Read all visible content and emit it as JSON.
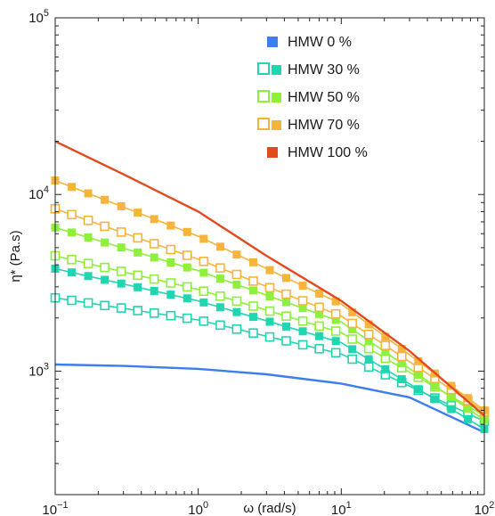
{
  "chart_data": {
    "type": "line",
    "xlabel": "ω (rad/s)",
    "ylabel": "η* (Pa.s)",
    "xscale": "log",
    "yscale": "log",
    "xlim": [
      0.1,
      100
    ],
    "ylim": [
      200,
      100000
    ],
    "grid": false,
    "legend_position": "top-right",
    "x_ticks": [
      {
        "base": "10",
        "exp": "−1",
        "value": 0.1
      },
      {
        "base": "10",
        "exp": "0",
        "value": 1
      },
      {
        "base": "10",
        "exp": "1",
        "value": 10
      },
      {
        "base": "10",
        "exp": "2",
        "value": 100
      }
    ],
    "y_ticks": [
      {
        "base": "10",
        "exp": "3",
        "value": 1000
      },
      {
        "base": "10",
        "exp": "4",
        "value": 10000
      },
      {
        "base": "10",
        "exp": "5",
        "value": 100000
      }
    ],
    "legend": [
      {
        "label": "HMW 0 %",
        "color": "#3d7df0",
        "style": "line"
      },
      {
        "label": "HMW 30 %",
        "color": "#20d6b0",
        "style": "markers"
      },
      {
        "label": "HMW 50 %",
        "color": "#8ef03a",
        "style": "markers"
      },
      {
        "label": "HMW 70 %",
        "color": "#f5b43c",
        "style": "markers"
      },
      {
        "label": "HMW 100 %",
        "color": "#e2491c",
        "style": "line"
      }
    ],
    "series": [
      {
        "name": "HMW 0 %",
        "color": "#3d7df0",
        "kind": "line",
        "points": [
          [
            0.1,
            1090
          ],
          [
            0.3,
            1070
          ],
          [
            1,
            1030
          ],
          [
            3,
            960
          ],
          [
            10,
            850
          ],
          [
            30,
            710
          ],
          [
            100,
            450
          ]
        ]
      },
      {
        "name": "HMW 30 %",
        "color": "#20d6b0",
        "kind": "line-marker",
        "marker": "open",
        "points": [
          [
            0.1,
            2600
          ],
          [
            1,
            1950
          ],
          [
            10,
            1250
          ],
          [
            100,
            520
          ]
        ]
      },
      {
        "name": "HMW 30 %",
        "color": "#20d6b0",
        "kind": "line-marker",
        "marker": "filled",
        "points": [
          [
            0.1,
            3800
          ],
          [
            1,
            2500
          ],
          [
            10,
            1450
          ],
          [
            100,
            470
          ]
        ]
      },
      {
        "name": "HMW 50 %",
        "color": "#8ef03a",
        "kind": "line-marker",
        "marker": "open",
        "points": [
          [
            0.1,
            4500
          ],
          [
            1,
            2900
          ],
          [
            10,
            1650
          ],
          [
            100,
            560
          ]
        ]
      },
      {
        "name": "HMW 50 %",
        "color": "#8ef03a",
        "kind": "line-marker",
        "marker": "filled",
        "points": [
          [
            0.1,
            6500
          ],
          [
            1,
            3700
          ],
          [
            10,
            1900
          ],
          [
            100,
            530
          ]
        ]
      },
      {
        "name": "HMW 70 %",
        "color": "#f5b43c",
        "kind": "line-marker",
        "marker": "open",
        "points": [
          [
            0.1,
            8300
          ],
          [
            1,
            4300
          ],
          [
            10,
            2050
          ],
          [
            100,
            590
          ]
        ]
      },
      {
        "name": "HMW 70 %",
        "color": "#f5b43c",
        "kind": "line-marker",
        "marker": "filled",
        "points": [
          [
            0.1,
            12000
          ],
          [
            1,
            5800
          ],
          [
            10,
            2400
          ],
          [
            100,
            600
          ]
        ]
      },
      {
        "name": "HMW 100 %",
        "color": "#e2491c",
        "kind": "line",
        "points": [
          [
            0.1,
            20000
          ],
          [
            0.3,
            13000
          ],
          [
            1,
            8000
          ],
          [
            3,
            4500
          ],
          [
            10,
            2500
          ],
          [
            30,
            1300
          ],
          [
            100,
            560
          ]
        ]
      }
    ]
  }
}
